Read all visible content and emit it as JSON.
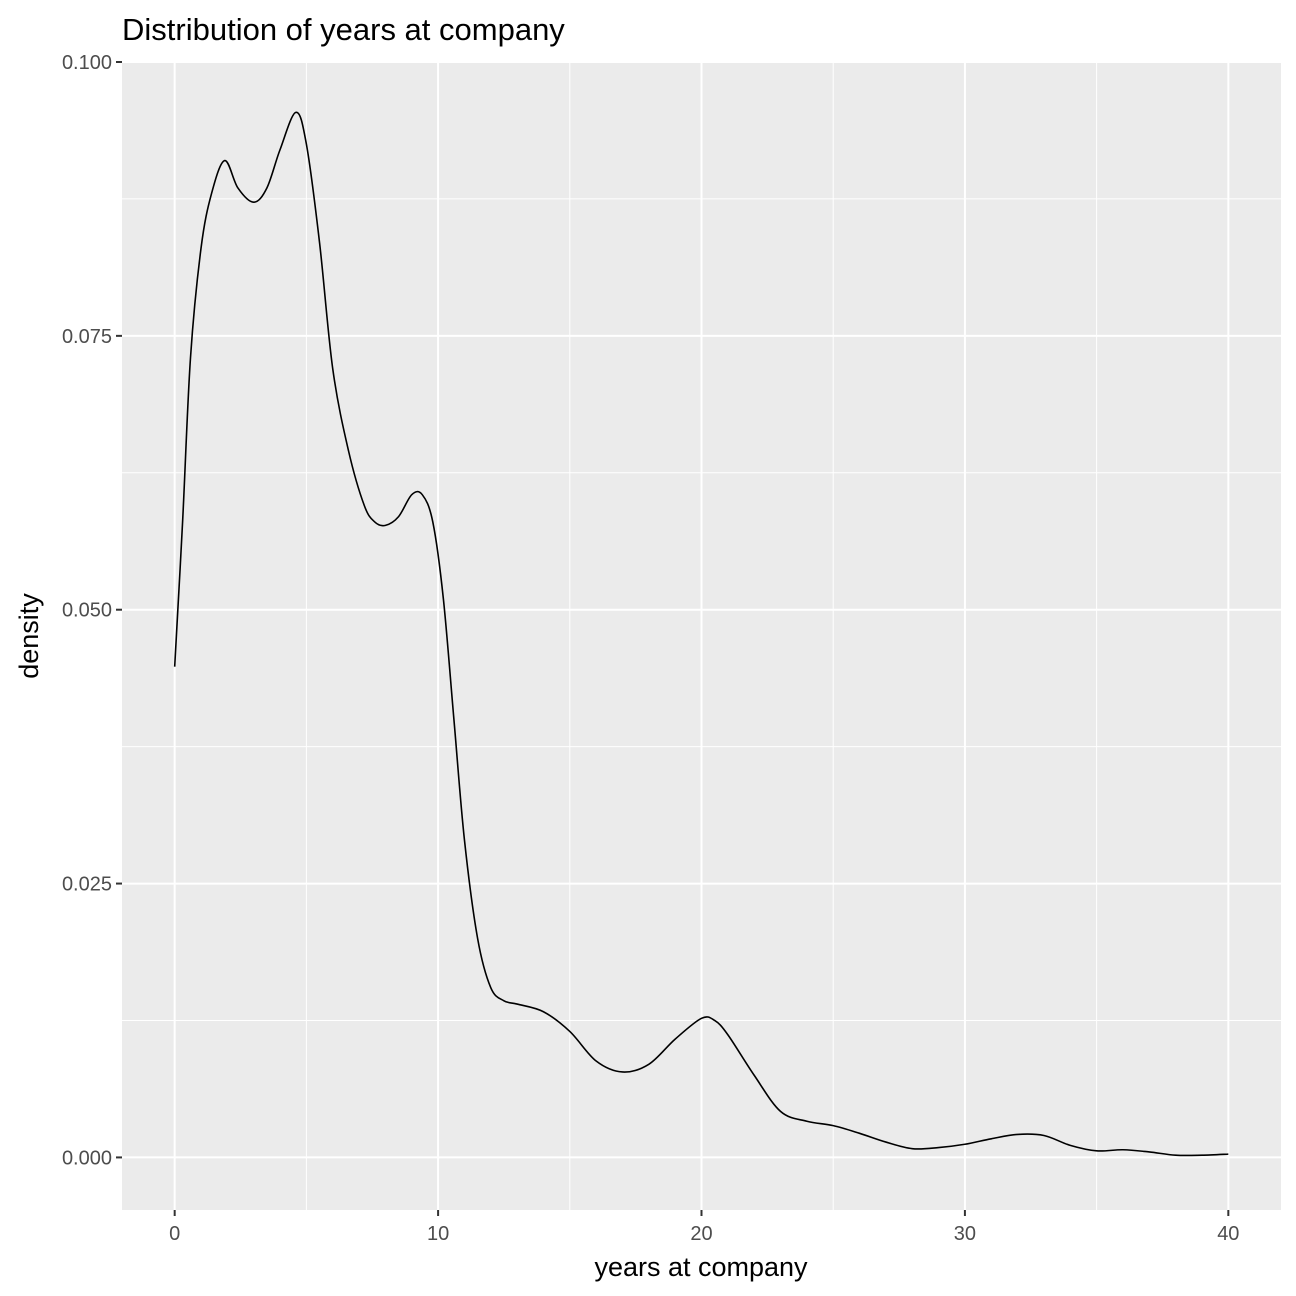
{
  "chart_data": {
    "type": "line",
    "title": "Distribution of years at company",
    "xlabel": "years at company",
    "ylabel": "density",
    "xlim": [
      -2,
      42
    ],
    "ylim": [
      -0.0048,
      0.1
    ],
    "x_ticks": [
      0,
      10,
      20,
      30,
      40
    ],
    "y_ticks": [
      0.0,
      0.025,
      0.05,
      0.075,
      0.1
    ],
    "x_tick_labels": [
      "0",
      "10",
      "20",
      "30",
      "40"
    ],
    "y_tick_labels": [
      "0.000",
      "0.025",
      "0.050",
      "0.075",
      "0.100"
    ],
    "grid": true,
    "legend": "none",
    "colors": {
      "panel": "#ebebeb",
      "grid": "#ffffff",
      "line": "#000000",
      "tick_text": "#4d4d4d",
      "tick_mark": "#333333"
    },
    "series": [
      {
        "x": [
          0,
          0.3,
          0.6,
          1.0,
          1.4,
          1.9,
          2.4,
          3.0,
          3.5,
          4.0,
          4.6,
          5.0,
          5.5,
          6.0,
          6.6,
          7.2,
          7.6,
          8.0,
          8.5,
          9.0,
          9.4,
          9.8,
          10.2,
          10.6,
          11.0,
          11.5,
          12.0,
          12.5,
          13.0,
          14.0,
          15.0,
          16.0,
          17.0,
          18.0,
          19.0,
          20.0,
          20.5,
          21.0,
          22.0,
          23.0,
          24.0,
          25.0,
          26.0,
          27.0,
          28.0,
          29.0,
          30.0,
          31.0,
          32.0,
          33.0,
          34.0,
          35.0,
          36.0,
          37.0,
          38.0,
          39.0,
          40.0
        ],
        "values": [
          0.0448,
          0.058,
          0.073,
          0.083,
          0.088,
          0.091,
          0.0885,
          0.0872,
          0.0885,
          0.092,
          0.0954,
          0.0925,
          0.0835,
          0.072,
          0.0645,
          0.0595,
          0.058,
          0.0577,
          0.0585,
          0.0605,
          0.0605,
          0.058,
          0.051,
          0.04,
          0.029,
          0.02,
          0.0155,
          0.0143,
          0.014,
          0.0133,
          0.0115,
          0.0088,
          0.0078,
          0.0085,
          0.0108,
          0.0127,
          0.0125,
          0.0112,
          0.0075,
          0.0042,
          0.0033,
          0.0029,
          0.0022,
          0.0014,
          0.0008,
          0.0009,
          0.0012,
          0.0017,
          0.0021,
          0.002,
          0.0011,
          0.0006,
          0.0007,
          0.0005,
          0.0002,
          0.0002,
          0.0003
        ]
      }
    ]
  }
}
